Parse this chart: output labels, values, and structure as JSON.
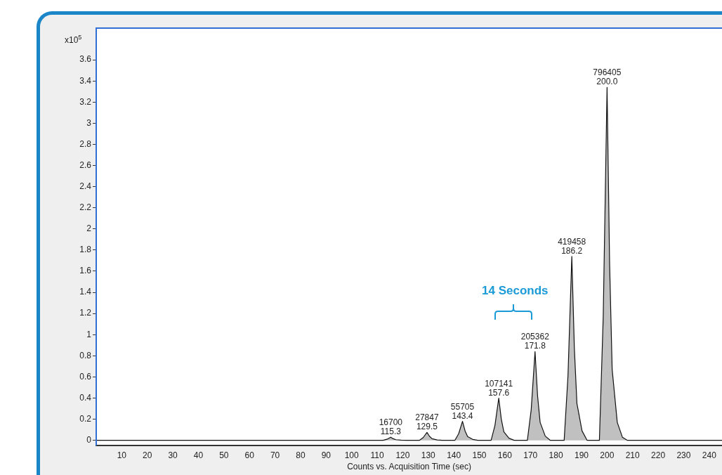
{
  "chart_data": {
    "type": "area",
    "xlabel": "Counts vs. Acquisition Time (sec)",
    "ylabel": "x10$^{5}$",
    "series": [
      {
        "color": "#c0c0c0",
        "x": [
          0,
          105,
          112.3,
          113.8,
          115.3,
          116.3,
          117.3,
          119.3,
          121.3,
          126.5,
          128,
          129.5,
          130.5,
          131.5,
          133.5,
          135.5,
          140.4,
          141.9,
          143.4,
          144.4,
          145.4,
          147.4,
          149.4,
          154.6,
          156.1,
          157.6,
          158.6,
          159.6,
          161.6,
          163.6,
          168.8,
          170.3,
          171.8,
          172.8,
          173.8,
          175.8,
          177.8,
          183.2,
          184.7,
          186.2,
          187.2,
          188.2,
          190.2,
          192.2,
          197,
          198.5,
          200,
          201,
          202,
          204,
          206,
          208,
          245
        ],
        "values": [
          0,
          0,
          0,
          0.01,
          0.03,
          0.015,
          0.006,
          0.002,
          0,
          0,
          0.026,
          0.075,
          0.038,
          0.015,
          0.004,
          0,
          0,
          0.063,
          0.18,
          0.09,
          0.036,
          0.009,
          0,
          0,
          0.14,
          0.4,
          0.2,
          0.08,
          0.02,
          0,
          0,
          0.29,
          0.84,
          0.42,
          0.17,
          0.04,
          0,
          0,
          0.61,
          1.74,
          0.87,
          0.35,
          0.09,
          0,
          0,
          1.17,
          3.34,
          1.67,
          0.67,
          0.17,
          0.03,
          0,
          0
        ]
      }
    ],
    "xlim": [
      0,
      245
    ],
    "xticks": [
      10,
      20,
      30,
      40,
      50,
      60,
      70,
      80,
      90,
      100,
      110,
      120,
      130,
      140,
      150,
      160,
      170,
      180,
      190,
      200,
      210,
      220,
      230,
      240
    ],
    "ylim": [
      -0.05,
      3.9
    ],
    "yticks": [
      0,
      0.2,
      0.4,
      0.6,
      0.8,
      1,
      1.2,
      1.4,
      1.6,
      1.8,
      2,
      2.2,
      2.4,
      2.6,
      2.8,
      3,
      3.2,
      3.4,
      3.6
    ],
    "grid": false,
    "legend": false,
    "annotations": [
      {
        "text": "16700\n115.3",
        "x": 115.3,
        "y": 0.03
      },
      {
        "text": "27847\n129.5",
        "x": 129.5,
        "y": 0.075
      },
      {
        "text": "55705\n143.4",
        "x": 143.4,
        "y": 0.18
      },
      {
        "text": "107141\n157.6",
        "x": 157.6,
        "y": 0.4
      },
      {
        "text": "205362\n171.8",
        "x": 171.8,
        "y": 0.84
      },
      {
        "text": "419458\n186.2",
        "x": 186.2,
        "y": 1.74
      },
      {
        "text": "796405\n200.0",
        "x": 200.0,
        "y": 3.34
      },
      "14 Seconds"
    ]
  }
}
